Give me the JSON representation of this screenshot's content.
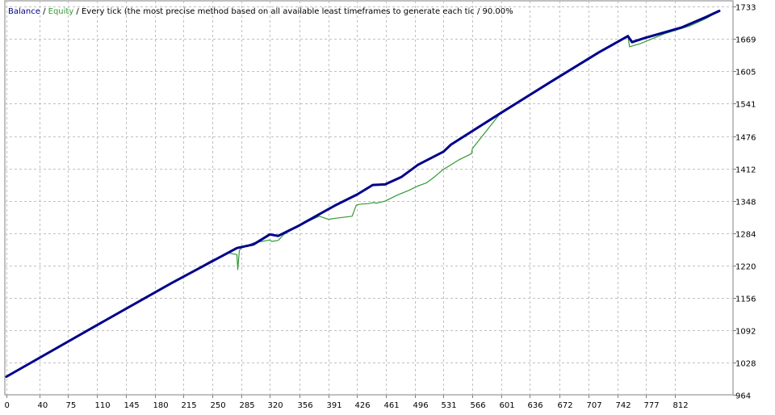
{
  "legend": {
    "balance_label": "Balance",
    "separator": " / ",
    "equity_label": "Equity",
    "description": " / Every tick (the most precise method based on all available least timeframes to generate each tic / 90.00%"
  },
  "colors": {
    "balance": "#00008b",
    "equity": "#339933",
    "grid": "#c0c0c0",
    "frame": "#808080",
    "background": "#ffffff"
  },
  "chart_data": {
    "type": "line",
    "title": "",
    "xlabel": "",
    "ylabel": "",
    "xlim": [
      0,
      867
    ],
    "ylim": [
      964,
      1745
    ],
    "grid": true,
    "legend_position": "top-left",
    "x_ticks": [
      0,
      40,
      75,
      110,
      145,
      180,
      215,
      250,
      285,
      320,
      356,
      391,
      426,
      461,
      496,
      531,
      566,
      601,
      636,
      672,
      707,
      742,
      777,
      812
    ],
    "y_ticks": [
      964,
      1028,
      1092,
      1156,
      1220,
      1284,
      1348,
      1412,
      1476,
      1541,
      1605,
      1669,
      1733
    ],
    "series": [
      {
        "name": "Balance",
        "color": "#00008b",
        "x": [
          0,
          100,
          200,
          280,
          300,
          320,
          330,
          356,
          380,
          400,
          426,
          445,
          460,
          480,
          500,
          531,
          540,
          600,
          660,
          720,
          755,
          760,
          775,
          820,
          850,
          866
        ],
        "y": [
          1000,
          1093,
          1185,
          1255,
          1262,
          1282,
          1279,
          1300,
          1322,
          1340,
          1361,
          1380,
          1381,
          1396,
          1420,
          1446,
          1460,
          1522,
          1583,
          1643,
          1675,
          1663,
          1671,
          1692,
          1713,
          1725
        ]
      },
      {
        "name": "Equity",
        "color": "#339933",
        "x": [
          0,
          250,
          270,
          280,
          281,
          283,
          285,
          290,
          300,
          320,
          322,
          330,
          337,
          356,
          380,
          391,
          400,
          420,
          425,
          430,
          440,
          445,
          450,
          460,
          465,
          475,
          490,
          500,
          510,
          520,
          530,
          540,
          550,
          560,
          565,
          566,
          600,
          660,
          720,
          755,
          757,
          770,
          800,
          830,
          850,
          866
        ],
        "y": [
          1000,
          1231,
          1245,
          1242,
          1212,
          1250,
          1255,
          1258,
          1265,
          1271,
          1268,
          1270,
          1282,
          1300,
          1318,
          1312,
          1314,
          1318,
          1340,
          1342,
          1343,
          1345,
          1344,
          1348,
          1352,
          1360,
          1370,
          1378,
          1384,
          1396,
          1410,
          1420,
          1430,
          1438,
          1442,
          1452,
          1522,
          1583,
          1643,
          1675,
          1654,
          1660,
          1680,
          1695,
          1710,
          1725
        ]
      }
    ]
  }
}
